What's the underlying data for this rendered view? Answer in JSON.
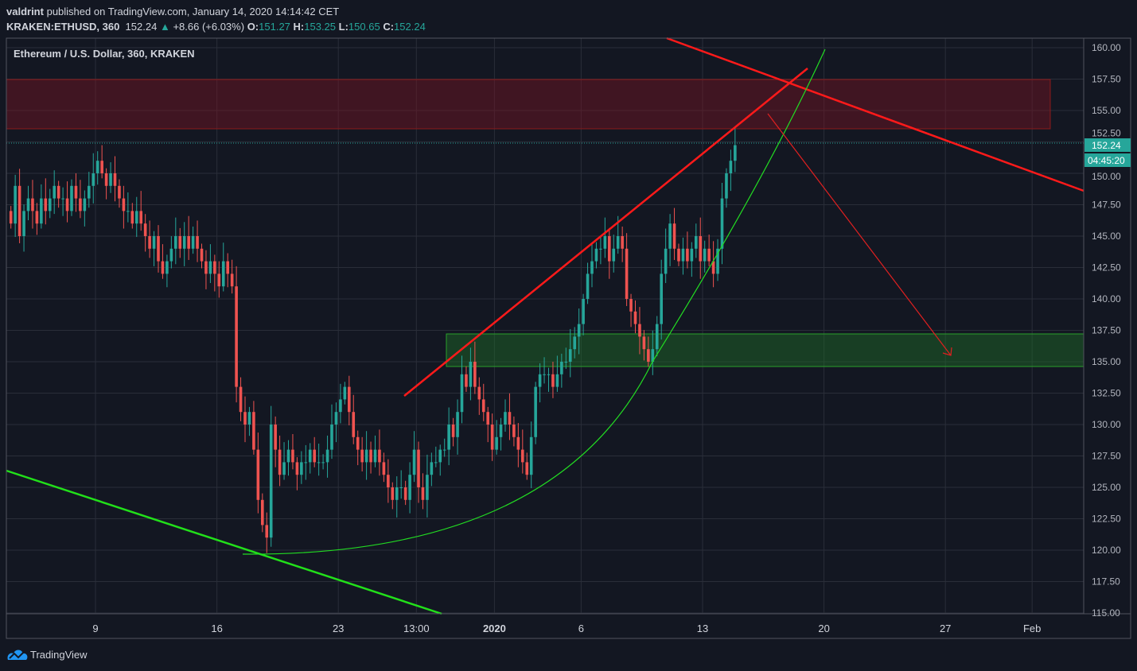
{
  "header": {
    "author": "valdrint",
    "published": "published on TradingView.com, January 14, 2020 14:14:42 CET",
    "symbol": "KRAKEN:ETHUSD, 360",
    "last": "152.24",
    "change": "+8.66 (+6.03%)",
    "o_label": "O:",
    "o": "151.27",
    "h_label": "H:",
    "h": "153.25",
    "l_label": "L:",
    "l": "150.65",
    "c_label": "C:",
    "c": "152.24"
  },
  "chart_title": "Ethereum / U.S. Dollar, 360, KRAKEN",
  "price_badge": "152.24",
  "countdown": "04:45:20",
  "brand": "TradingView",
  "colors": {
    "up": "#26a69a",
    "down": "#ef5350",
    "bg": "#131722",
    "grid": "#2a2e39"
  },
  "chart_data": {
    "type": "candlestick",
    "title": "Ethereum / U.S. Dollar, 360, KRAKEN",
    "interval_hours": 6,
    "start": "2019-12-04",
    "ylim": [
      115,
      160
    ],
    "y_ticks": [
      "160.00",
      "157.50",
      "155.00",
      "152.50",
      "150.00",
      "147.50",
      "145.00",
      "142.50",
      "140.00",
      "137.50",
      "135.00",
      "132.50",
      "130.00",
      "127.50",
      "125.00",
      "122.50",
      "120.00",
      "117.50",
      "115.00"
    ],
    "x_ticks": [
      {
        "label": "9",
        "day": 5
      },
      {
        "label": "16",
        "day": 12
      },
      {
        "label": "23",
        "day": 19
      },
      {
        "label": "13:00",
        "day": 23.5
      },
      {
        "label": "2020",
        "day": 28
      },
      {
        "label": "6",
        "day": 33
      },
      {
        "label": "13",
        "day": 40
      },
      {
        "label": "20",
        "day": 47
      },
      {
        "label": "27",
        "day": 54
      },
      {
        "label": "Feb",
        "day": 59
      }
    ],
    "closes": [
      146,
      149,
      145,
      147,
      148,
      147,
      146,
      148,
      147,
      148,
      149,
      148,
      148,
      147,
      149,
      148,
      147,
      148,
      149,
      150,
      151,
      150,
      149,
      150,
      149,
      148,
      147,
      147,
      146,
      147,
      146,
      145,
      144,
      145,
      143,
      142,
      143,
      144,
      145,
      144,
      145,
      144,
      145,
      144,
      143,
      142,
      143,
      142,
      141,
      143,
      142,
      141,
      133,
      131,
      130,
      131,
      128,
      124,
      122,
      121,
      130,
      128,
      126,
      127,
      128,
      127,
      126,
      127,
      127,
      128,
      127,
      127,
      127,
      128,
      130,
      131,
      132,
      133,
      131,
      129,
      128,
      127,
      128,
      127,
      128,
      127,
      126,
      125,
      124,
      125,
      125,
      124,
      126,
      128,
      125,
      124,
      126,
      127,
      127,
      128,
      128,
      130,
      129,
      131,
      134,
      133,
      135,
      133,
      132,
      131,
      130,
      128,
      129,
      130,
      131,
      130,
      129,
      128,
      127,
      126,
      129,
      133,
      134,
      134,
      134,
      133,
      134,
      135,
      135,
      136,
      137,
      138,
      140,
      142,
      143,
      144,
      144,
      145,
      143,
      144,
      145,
      144,
      140,
      139,
      138,
      137,
      136,
      135,
      136,
      138,
      142,
      144,
      146,
      144,
      143,
      144,
      143,
      144,
      145,
      143,
      144,
      143,
      142,
      144,
      148,
      150,
      151,
      152.24
    ],
    "first_open": 147,
    "zones": [
      {
        "type": "resistance",
        "from": 153.5,
        "to": 157.4
      },
      {
        "type": "support",
        "from": 134.7,
        "to": 137.3
      }
    ],
    "last_price": 152.24
  }
}
